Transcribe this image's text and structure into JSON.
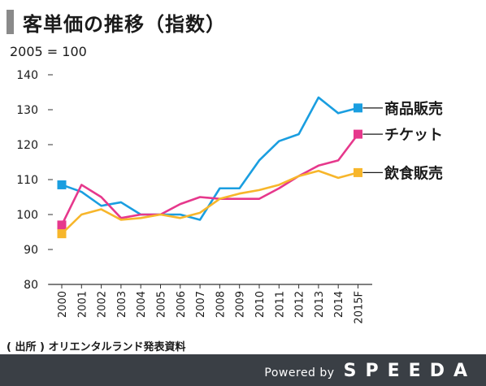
{
  "header": {
    "title": "客単価の推移（指数）"
  },
  "source": "( 出所 ) オリエンタルランド発表資料",
  "footer": {
    "powered_by": "Powered by",
    "brand": "SPEEDA"
  },
  "chart_data": {
    "type": "line",
    "title": "客単価の推移（指数）",
    "unit_label": "2005 = 100",
    "x": [
      "2000",
      "2001",
      "2002",
      "2003",
      "2004",
      "2005",
      "2006",
      "2007",
      "2008",
      "2009",
      "2010",
      "2011",
      "2012",
      "2013",
      "2014",
      "2015F"
    ],
    "ylim": [
      80,
      140
    ],
    "yticks": [
      80,
      90,
      100,
      110,
      120,
      130,
      140
    ],
    "grid": false,
    "legend": "inline-right",
    "series": [
      {
        "name": "商品販売",
        "color": "#1a9ee0",
        "values": [
          108.5,
          106.5,
          102.5,
          103.5,
          100,
          100,
          100,
          98.5,
          107.5,
          107.5,
          115.5,
          121,
          123,
          133.5,
          129,
          130.5
        ]
      },
      {
        "name": "チケット",
        "color": "#e6388c",
        "values": [
          97,
          108.5,
          105,
          99,
          100,
          100,
          103,
          105,
          104.5,
          104.5,
          104.5,
          107.5,
          111,
          114,
          115.5,
          123
        ]
      },
      {
        "name": "飲食販売",
        "color": "#f7b62b",
        "values": [
          94.5,
          100,
          101.5,
          98.5,
          99,
          100,
          99,
          100.5,
          104.5,
          106,
          107,
          108.5,
          111,
          112.5,
          110.5,
          112
        ]
      }
    ]
  }
}
